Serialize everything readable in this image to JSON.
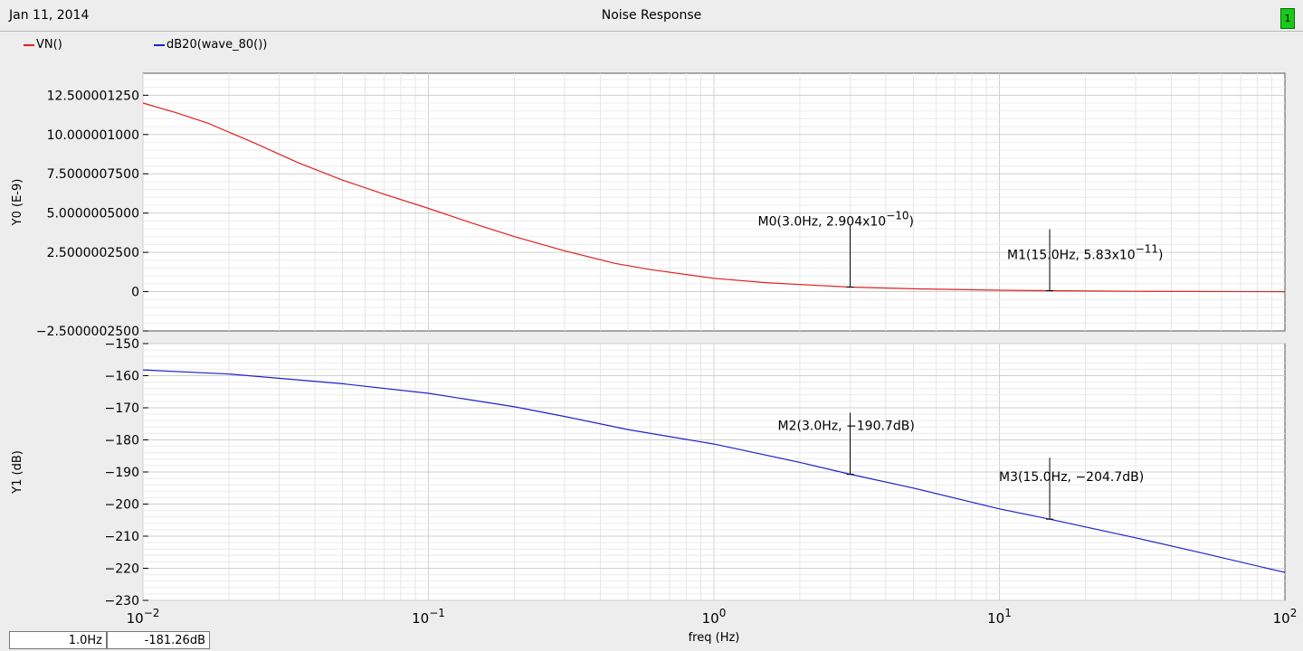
{
  "header": {
    "date": "Jan 11, 2014",
    "title": "Noise Response",
    "badge": "1",
    "badge_color": "#19c919"
  },
  "legend": [
    {
      "label": "VN()",
      "color": "#e02020"
    },
    {
      "label": "dB20(wave_80())",
      "color": "#2020d0"
    }
  ],
  "status": {
    "freq": "1.0Hz",
    "value": "-181.26dB"
  },
  "chart_data": [
    {
      "type": "line",
      "title": "",
      "xlabel": "freq (Hz)",
      "xscale": "log",
      "xlim": [
        0.01,
        100
      ],
      "x_tick_labels": [
        "10^-2",
        "10^-1",
        "10^0",
        "10^1",
        "10^2"
      ],
      "ylabel": "Y0 (E-9)",
      "ylim": [
        -2.5,
        13.9
      ],
      "y_tick_labels": [
        "12.500001250",
        "10.000001000",
        "7.5000007500",
        "5.0000005000",
        "2.5000002500",
        "0",
        "-2.5000002500"
      ],
      "series": [
        {
          "name": "VN()",
          "color": "#e02020",
          "x": [
            0.01,
            0.013,
            0.017,
            0.025,
            0.035,
            0.05,
            0.07,
            0.1,
            0.14,
            0.2,
            0.3,
            0.45,
            0.6,
            1.0,
            1.5,
            2.0,
            3.0,
            5.0,
            10.0,
            15.0,
            30.0,
            100.0
          ],
          "y": [
            12.0,
            11.4,
            10.7,
            9.4,
            8.2,
            7.1,
            6.2,
            5.3,
            4.4,
            3.5,
            2.6,
            1.8,
            1.4,
            0.85,
            0.58,
            0.45,
            0.29,
            0.18,
            0.09,
            0.058,
            0.02,
            0.0
          ]
        }
      ],
      "markers": [
        {
          "label": "M0(3.0Hz, 2.904x10",
          "exp": "−10",
          "suffix": ")",
          "x": 3.0,
          "y": 0.2904
        },
        {
          "label": "M1(15.0Hz, 5.83x10",
          "exp": "−11",
          "suffix": ")",
          "x": 15.0,
          "y": 0.0583
        }
      ]
    },
    {
      "type": "line",
      "title": "",
      "xlabel": "freq (Hz)",
      "xscale": "log",
      "xlim": [
        0.01,
        100
      ],
      "ylabel": "Y1 (dB)",
      "ylim": [
        -230,
        -150
      ],
      "y_tick_labels": [
        "-150",
        "-160",
        "-170",
        "-180",
        "-190",
        "-200",
        "-210",
        "-220",
        "-230"
      ],
      "series": [
        {
          "name": "dB20(wave_80())",
          "color": "#2020d0",
          "x": [
            0.01,
            0.02,
            0.05,
            0.1,
            0.2,
            0.3,
            0.5,
            1.0,
            2.0,
            3.0,
            5.0,
            10.0,
            15.0,
            30.0,
            50.0,
            100.0
          ],
          "y": [
            -158.2,
            -159.5,
            -162.5,
            -165.5,
            -169.7,
            -172.7,
            -176.8,
            -181.3,
            -187.0,
            -190.7,
            -195.0,
            -201.5,
            -204.7,
            -210.5,
            -215.0,
            -221.3
          ]
        }
      ],
      "markers": [
        {
          "label": "M2(3.0Hz, −190.7dB)",
          "x": 3.0,
          "y": -190.7
        },
        {
          "label": "M3(15.0Hz, −204.7dB)",
          "x": 15.0,
          "y": -204.7
        }
      ]
    }
  ]
}
